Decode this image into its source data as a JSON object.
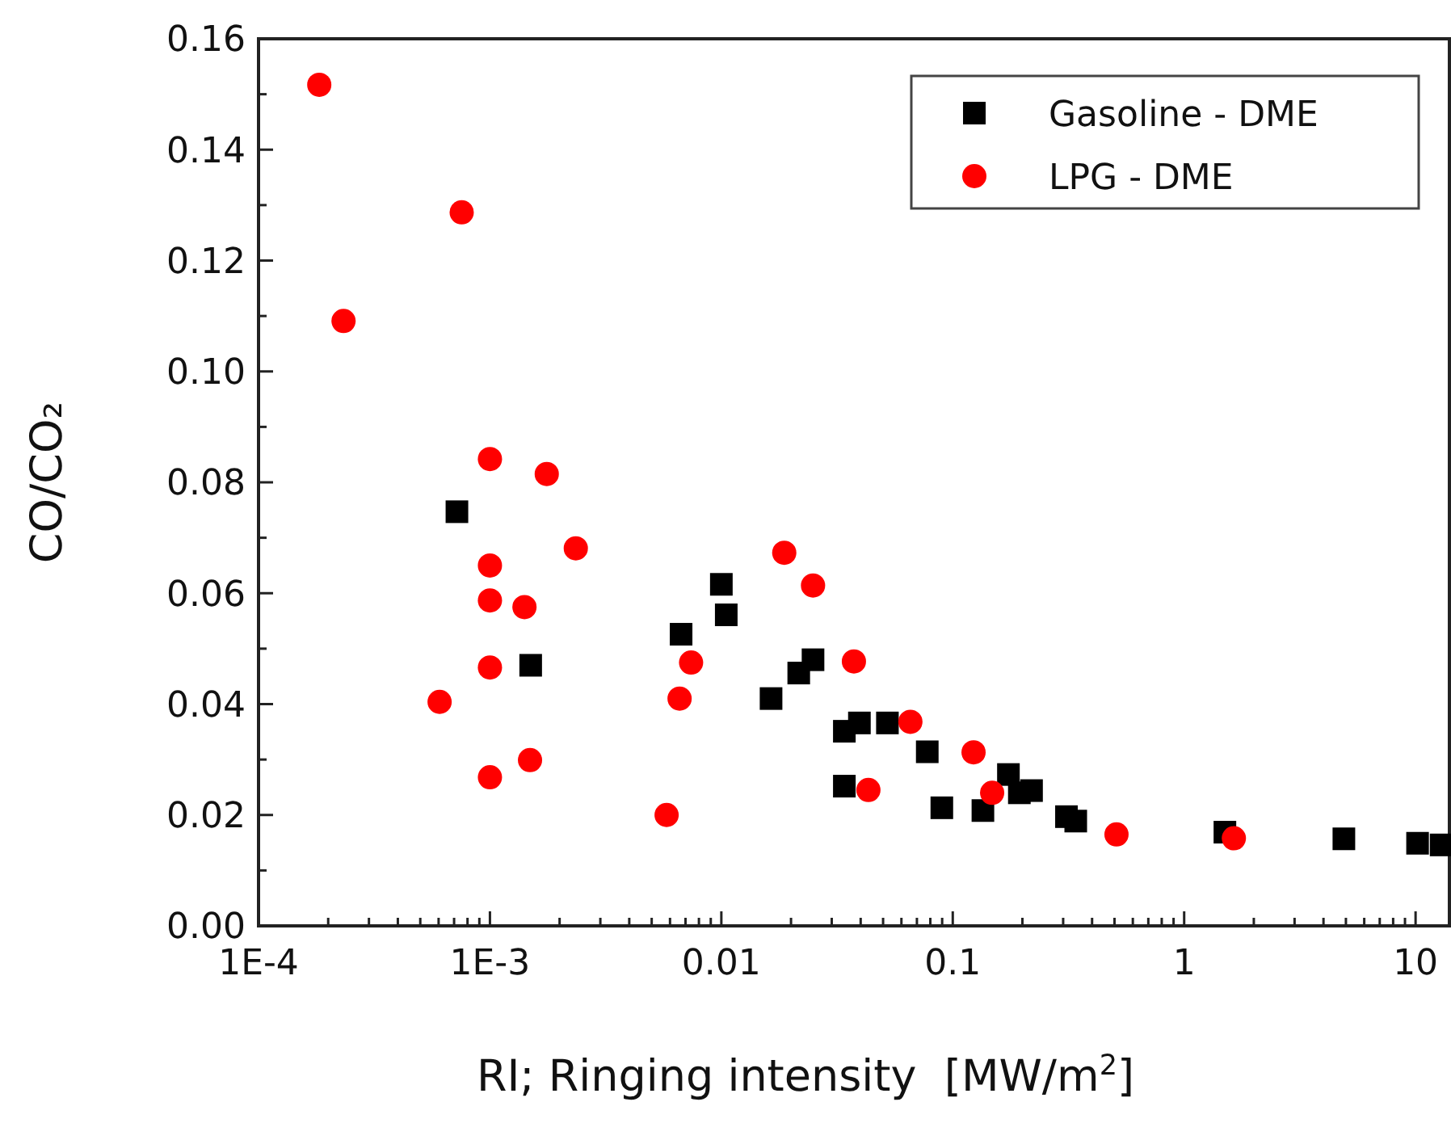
{
  "chart_data": {
    "type": "scatter",
    "xlabel": "RI; Ringing intensity  [MW/m$^{2}$]",
    "ylabel": "CO/CO₂",
    "log": "x",
    "xlim": [
      0.0001,
      14
    ],
    "ylim": [
      0,
      0.16
    ],
    "xticks": [
      {
        "value": 0.0001,
        "label": "1E-4"
      },
      {
        "value": 0.0002,
        "label": null
      },
      {
        "value": 0.0003,
        "label": null
      },
      {
        "value": 0.0004,
        "label": null
      },
      {
        "value": 0.0005,
        "label": null
      },
      {
        "value": 0.0006,
        "label": null
      },
      {
        "value": 0.0007,
        "label": null
      },
      {
        "value": 0.0008,
        "label": null
      },
      {
        "value": 0.0009,
        "label": null
      },
      {
        "value": 0.001,
        "label": "1E-3"
      },
      {
        "value": 0.002,
        "label": null
      },
      {
        "value": 0.003,
        "label": null
      },
      {
        "value": 0.004,
        "label": null
      },
      {
        "value": 0.005,
        "label": null
      },
      {
        "value": 0.006,
        "label": null
      },
      {
        "value": 0.007,
        "label": null
      },
      {
        "value": 0.008,
        "label": null
      },
      {
        "value": 0.009,
        "label": null
      },
      {
        "value": 0.01,
        "label": "0.01"
      },
      {
        "value": 0.02,
        "label": null
      },
      {
        "value": 0.03,
        "label": null
      },
      {
        "value": 0.04,
        "label": null
      },
      {
        "value": 0.05,
        "label": null
      },
      {
        "value": 0.06,
        "label": null
      },
      {
        "value": 0.07,
        "label": null
      },
      {
        "value": 0.08,
        "label": null
      },
      {
        "value": 0.09,
        "label": null
      },
      {
        "value": 0.1,
        "label": "0.1"
      },
      {
        "value": 0.2,
        "label": null
      },
      {
        "value": 0.3,
        "label": null
      },
      {
        "value": 0.4,
        "label": null
      },
      {
        "value": 0.5,
        "label": null
      },
      {
        "value": 0.6,
        "label": null
      },
      {
        "value": 0.7,
        "label": null
      },
      {
        "value": 0.8,
        "label": null
      },
      {
        "value": 0.9,
        "label": null
      },
      1,
      {
        "value": 2,
        "label": null
      },
      {
        "value": 3,
        "label": null
      },
      {
        "value": 4,
        "label": null
      },
      {
        "value": 5,
        "label": null
      },
      {
        "value": 6,
        "label": null
      },
      {
        "value": 7,
        "label": null
      },
      {
        "value": 8,
        "label": null
      },
      {
        "value": 9,
        "label": null
      },
      10
    ],
    "yticks": [
      {
        "value": 0,
        "label": "0.00"
      },
      {
        "value": 0.01,
        "label": null
      },
      {
        "value": 0.02,
        "label": "0.02"
      },
      {
        "value": 0.03,
        "label": null
      },
      {
        "value": 0.04,
        "label": "0.04"
      },
      {
        "value": 0.05,
        "label": null
      },
      {
        "value": 0.06,
        "label": "0.06"
      },
      {
        "value": 0.07,
        "label": null
      },
      {
        "value": 0.08,
        "label": "0.08"
      },
      {
        "value": 0.09,
        "label": null
      },
      {
        "value": 0.1,
        "label": "0.10"
      },
      {
        "value": 0.11,
        "label": null
      },
      {
        "value": 0.12,
        "label": "0.12"
      },
      {
        "value": 0.13,
        "label": null
      },
      {
        "value": 0.14,
        "label": "0.14"
      },
      {
        "value": 0.15,
        "label": null
      },
      {
        "value": 0.16,
        "label": "0.16"
      }
    ],
    "grid": false,
    "legend": "top right",
    "series": [
      {
        "name": "Gasoline - DME",
        "color": "#000000",
        "marker": "square",
        "x": [
          0.00072,
          0.0015,
          0.0067,
          0.01,
          0.0105,
          0.0164,
          0.0216,
          0.0249,
          0.034,
          0.0395,
          0.0522,
          0.034,
          0.0776,
          0.0897,
          0.135,
          0.174,
          0.194,
          0.219,
          0.31,
          0.34,
          1.5,
          4.9,
          10.2,
          12.9
        ],
        "values": [
          0.0747,
          0.047,
          0.0526,
          0.0616,
          0.0561,
          0.041,
          0.0456,
          0.048,
          0.0351,
          0.0366,
          0.0366,
          0.0252,
          0.0314,
          0.0213,
          0.0208,
          0.0273,
          0.024,
          0.0244,
          0.0197,
          0.0189,
          0.0169,
          0.0157,
          0.0149,
          0.0146
        ]
      },
      {
        "name": "LPG - DME",
        "color": "#ff0000",
        "marker": "circle",
        "x": [
          0.000183,
          0.000755,
          0.000233,
          0.001,
          0.00176,
          0.00235,
          0.001,
          0.001,
          0.00141,
          0.001,
          0.000606,
          0.001,
          0.00149,
          0.0058,
          0.0066,
          0.0074,
          0.0187,
          0.0249,
          0.0374,
          0.0432,
          0.0656,
          0.123,
          0.148,
          0.51,
          1.64
        ],
        "values": [
          0.1517,
          0.1287,
          0.1091,
          0.0842,
          0.0815,
          0.0681,
          0.065,
          0.0587,
          0.0575,
          0.0466,
          0.0404,
          0.0268,
          0.0299,
          0.02,
          0.041,
          0.0475,
          0.0673,
          0.0614,
          0.0477,
          0.0245,
          0.0368,
          0.0313,
          0.024,
          0.0165,
          0.0158
        ]
      }
    ]
  }
}
